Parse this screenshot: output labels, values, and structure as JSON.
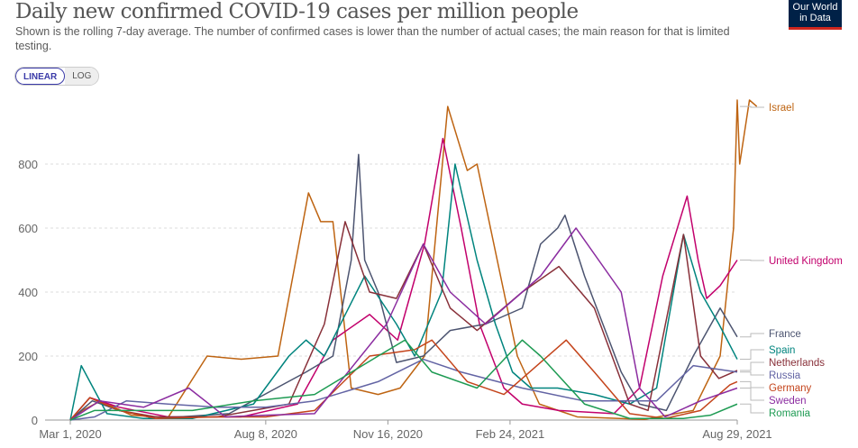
{
  "header": {
    "title": "Daily new confirmed COVID-19 cases per million people",
    "subtitle": "Shown is the rolling 7-day average. The number of confirmed cases is lower than the number of actual cases; the main reason for that is limited testing.",
    "logo_line1": "Our World",
    "logo_line2": "in Data",
    "scale_linear": "LINEAR",
    "scale_log": "LOG"
  },
  "chart_data": {
    "type": "line",
    "title": "Daily new confirmed COVID-19 cases per million people",
    "x_unit": "days since Mar 1, 2020",
    "xlim": [
      0,
      546
    ],
    "ylim": [
      0,
      1000
    ],
    "y_ticks": [
      0,
      200,
      400,
      600,
      800
    ],
    "y_tick_labels": [
      "0",
      "200",
      "400",
      "600",
      "800"
    ],
    "x_ticks": [
      0,
      160,
      260,
      360,
      546
    ],
    "x_tick_labels": [
      "Mar 1, 2020",
      "Aug 8, 2020",
      "Nov 16, 2020",
      "Feb 24, 2021",
      "Aug 29, 2021"
    ],
    "grid": true,
    "legend": "right",
    "series": [
      {
        "name": "Israel",
        "color": "#be6412",
        "x": [
          0,
          10,
          25,
          50,
          80,
          112,
          140,
          170,
          195,
          205,
          215,
          230,
          252,
          270,
          290,
          309,
          325,
          333,
          355,
          366,
          384,
          415,
          470,
          510,
          532,
          543,
          548,
          556,
          562,
          546
        ],
        "y": [
          0,
          30,
          60,
          15,
          8,
          200,
          190,
          200,
          710,
          620,
          620,
          100,
          80,
          100,
          200,
          980,
          780,
          800,
          400,
          200,
          50,
          10,
          2,
          30,
          200,
          600,
          800,
          1000,
          980,
          1000
        ]
      },
      {
        "name": "United Kingdom",
        "color": "#c2006c",
        "x": [
          0,
          16,
          40,
          80,
          140,
          186,
          215,
          245,
          268,
          290,
          305,
          320,
          335,
          355,
          370,
          400,
          445,
          466,
          485,
          505,
          514,
          521,
          532,
          546
        ],
        "y": [
          0,
          70,
          40,
          10,
          10,
          50,
          250,
          330,
          250,
          550,
          880,
          600,
          300,
          100,
          50,
          30,
          20,
          100,
          450,
          700,
          500,
          380,
          420,
          500
        ]
      },
      {
        "name": "France",
        "color": "#4c5470",
        "x": [
          0,
          18,
          40,
          70,
          130,
          193,
          215,
          230,
          236,
          241,
          252,
          267,
          289,
          311,
          340,
          370,
          385,
          399,
          405,
          421,
          436,
          451,
          466,
          488,
          510,
          532,
          546,
          546
        ],
        "y": [
          0,
          60,
          30,
          5,
          20,
          150,
          200,
          500,
          830,
          500,
          400,
          180,
          200,
          280,
          300,
          350,
          550,
          600,
          640,
          450,
          300,
          150,
          50,
          30,
          200,
          350,
          260,
          260
        ]
      },
      {
        "name": "Spain",
        "color": "#00847e",
        "x": [
          0,
          9,
          30,
          60,
          100,
          150,
          179,
          193,
          208,
          241,
          267,
          282,
          304,
          315,
          333,
          348,
          362,
          377,
          399,
          429,
          458,
          480,
          502,
          516,
          531,
          546
        ],
        "y": [
          0,
          170,
          20,
          5,
          5,
          50,
          200,
          250,
          200,
          450,
          300,
          200,
          400,
          800,
          500,
          300,
          150,
          100,
          100,
          80,
          50,
          100,
          580,
          400,
          300,
          190
        ]
      },
      {
        "name": "Netherlands",
        "color": "#883039",
        "x": [
          0,
          16,
          40,
          70,
          120,
          179,
          208,
          225,
          245,
          267,
          289,
          311,
          333,
          370,
          400,
          429,
          458,
          473,
          502,
          516,
          531,
          546
        ],
        "y": [
          0,
          70,
          30,
          10,
          10,
          50,
          300,
          620,
          400,
          380,
          550,
          350,
          280,
          400,
          480,
          350,
          50,
          30,
          580,
          200,
          130,
          155
        ]
      },
      {
        "name": "Russia",
        "color": "#6364a4",
        "x": [
          0,
          20,
          46,
          80,
          120,
          160,
          200,
          252,
          289,
          320,
          370,
          420,
          480,
          510,
          546
        ],
        "y": [
          0,
          10,
          60,
          50,
          40,
          40,
          60,
          120,
          190,
          150,
          100,
          60,
          60,
          170,
          150
        ]
      },
      {
        "name": "Germany",
        "color": "#c4441b",
        "x": [
          0,
          16,
          40,
          70,
          120,
          160,
          200,
          245,
          282,
          296,
          325,
          355,
          385,
          406,
          429,
          458,
          487,
          516,
          540,
          546
        ],
        "y": [
          0,
          70,
          30,
          5,
          10,
          10,
          30,
          200,
          220,
          250,
          120,
          80,
          180,
          250,
          150,
          20,
          5,
          30,
          110,
          120
        ]
      },
      {
        "name": "Sweden",
        "color": "#8b2ca0",
        "x": [
          0,
          24,
          60,
          97,
          127,
          160,
          200,
          259,
          289,
          311,
          340,
          385,
          414,
          451,
          466,
          487,
          516,
          546
        ],
        "y": [
          0,
          60,
          40,
          100,
          10,
          15,
          20,
          300,
          550,
          400,
          300,
          450,
          600,
          400,
          100,
          10,
          60,
          100
        ]
      },
      {
        "name": "Romania",
        "color": "#1e9b53",
        "x": [
          0,
          20,
          60,
          100,
          150,
          200,
          252,
          274,
          296,
          333,
          370,
          385,
          421,
          458,
          502,
          524,
          546
        ],
        "y": [
          0,
          30,
          30,
          30,
          60,
          80,
          200,
          250,
          150,
          100,
          250,
          200,
          50,
          5,
          5,
          15,
          50
        ]
      }
    ]
  }
}
